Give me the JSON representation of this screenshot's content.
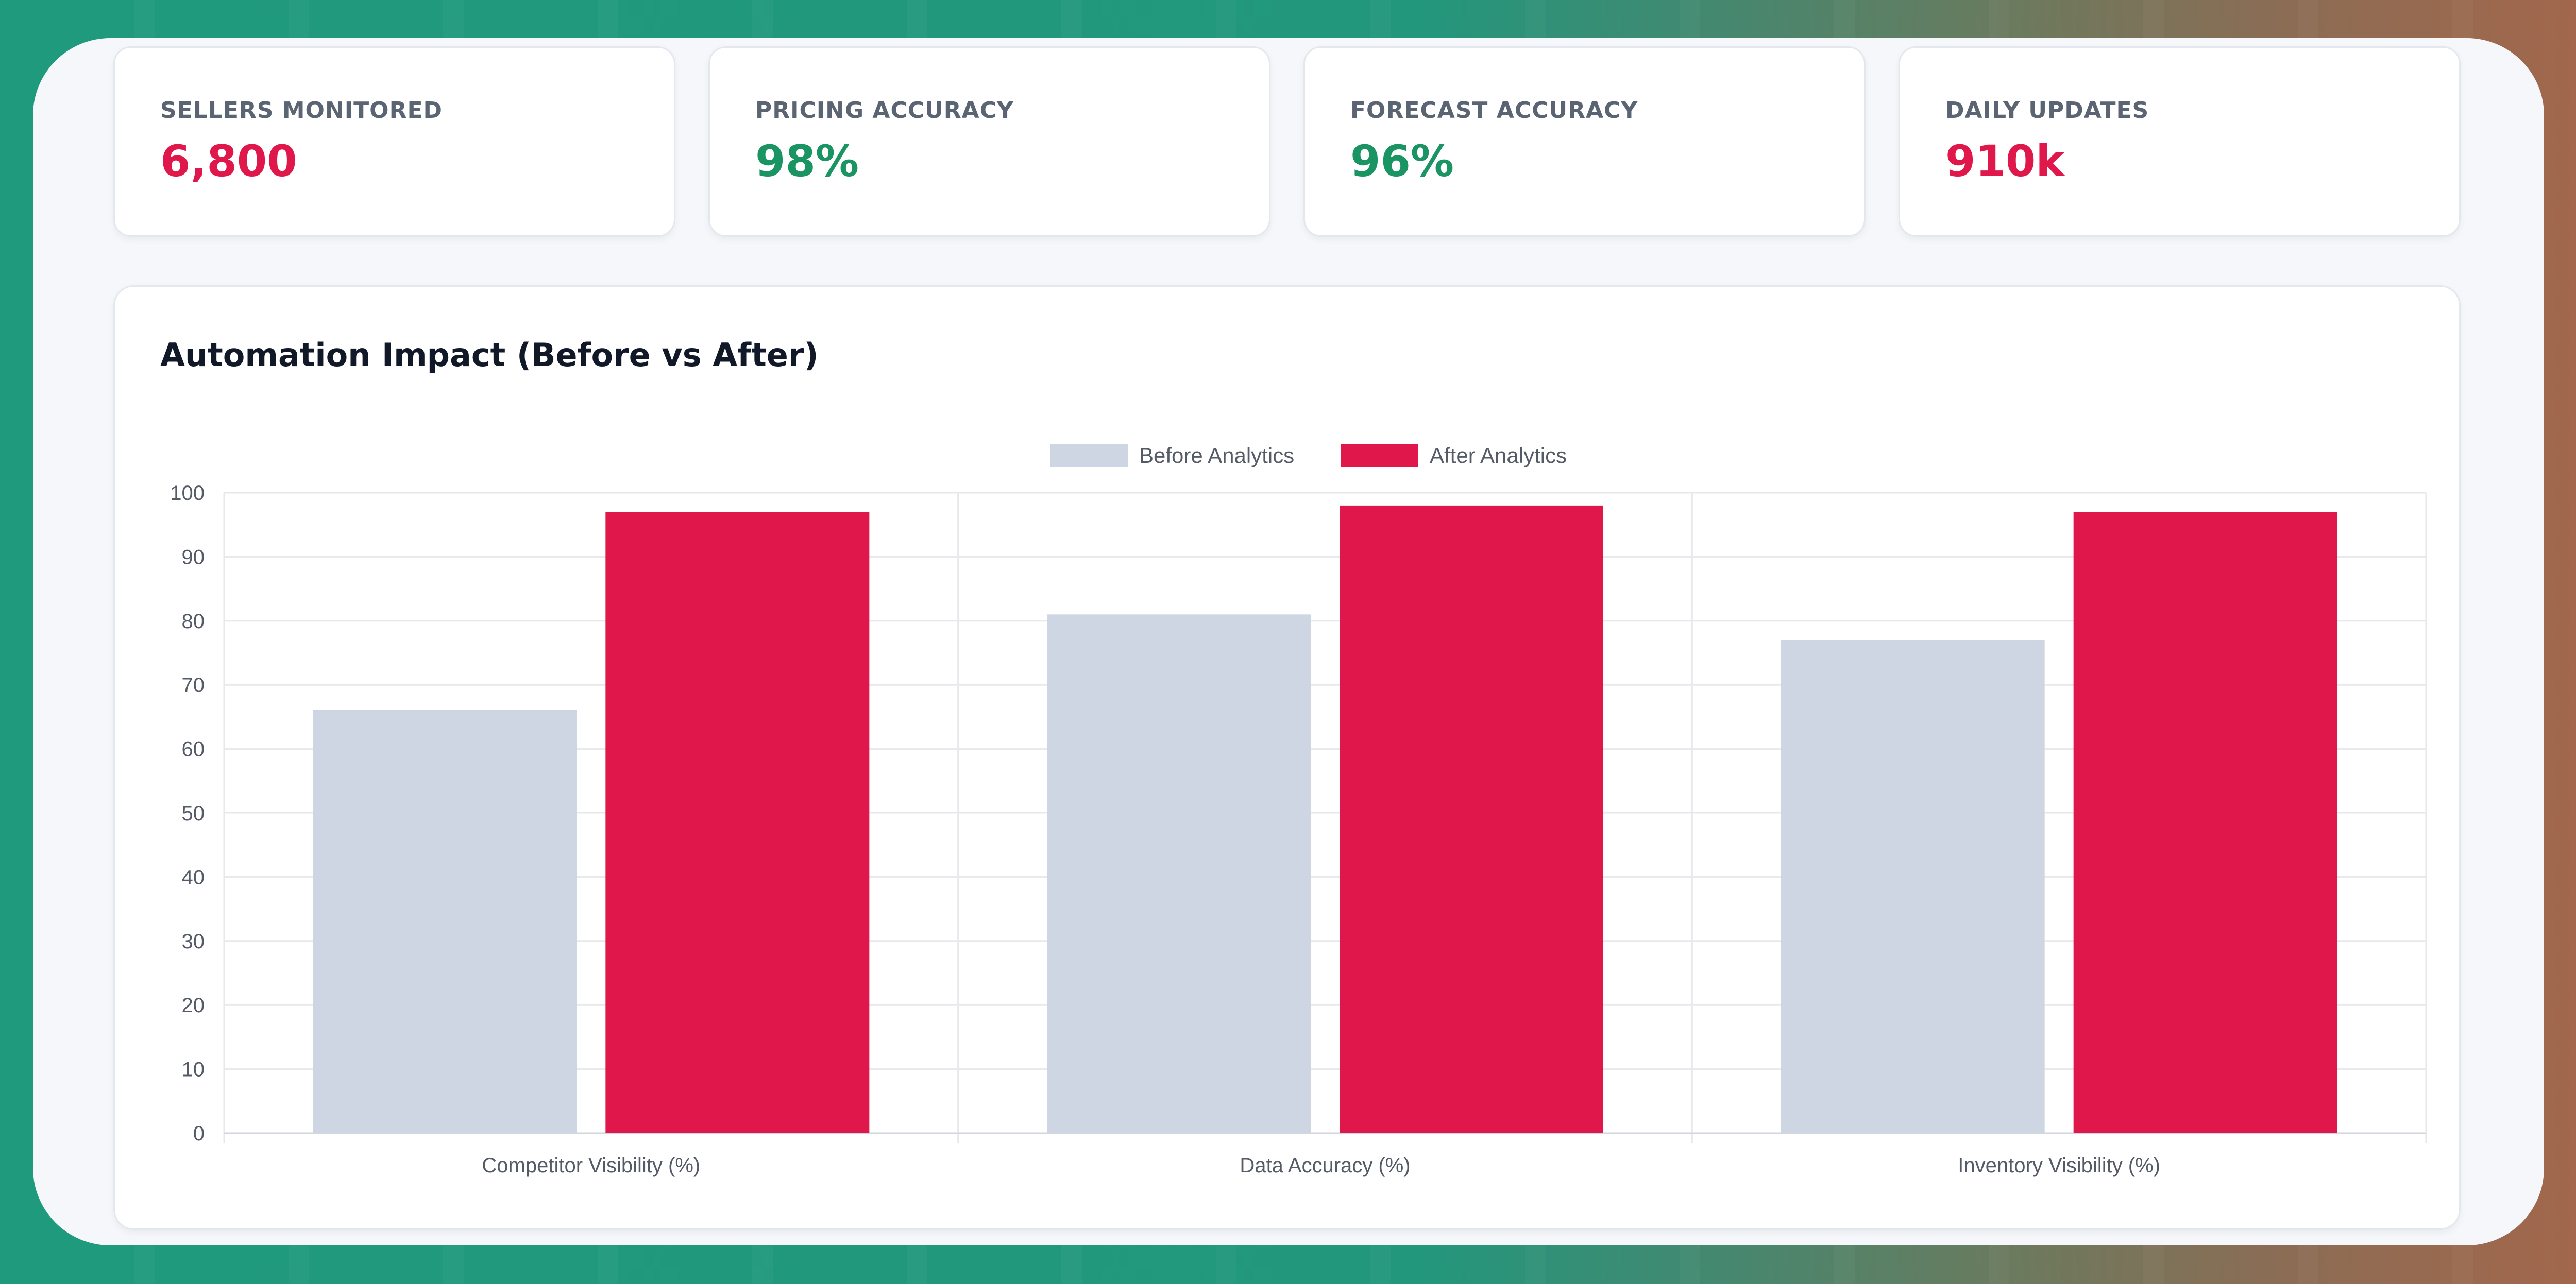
{
  "kpis": [
    {
      "label": "SELLERS MONITORED",
      "value": "6,800",
      "tone": "red"
    },
    {
      "label": "PRICING ACCURACY",
      "value": "98%",
      "tone": "green"
    },
    {
      "label": "FORECAST ACCURACY",
      "value": "96%",
      "tone": "green"
    },
    {
      "label": "DAILY UPDATES",
      "value": "910k",
      "tone": "red"
    }
  ],
  "colors": {
    "red": "#e0174a",
    "green": "#1a9463",
    "before": "#cdd6e2",
    "after": "#e0174a"
  },
  "chart": {
    "title": "Automation Impact (Before vs After)"
  },
  "chart_data": {
    "type": "bar",
    "title": "Automation Impact (Before vs After)",
    "categories": [
      "Competitor Visibility (%)",
      "Data Accuracy (%)",
      "Inventory Visibility (%)"
    ],
    "series": [
      {
        "name": "Before Analytics",
        "values": [
          66,
          81,
          77
        ]
      },
      {
        "name": "After Analytics",
        "values": [
          97,
          98,
          97
        ]
      }
    ],
    "ylim": [
      0,
      100
    ],
    "yticks": [
      0,
      10,
      20,
      30,
      40,
      50,
      60,
      70,
      80,
      90,
      100
    ],
    "grid": true,
    "legend": "top-center"
  }
}
